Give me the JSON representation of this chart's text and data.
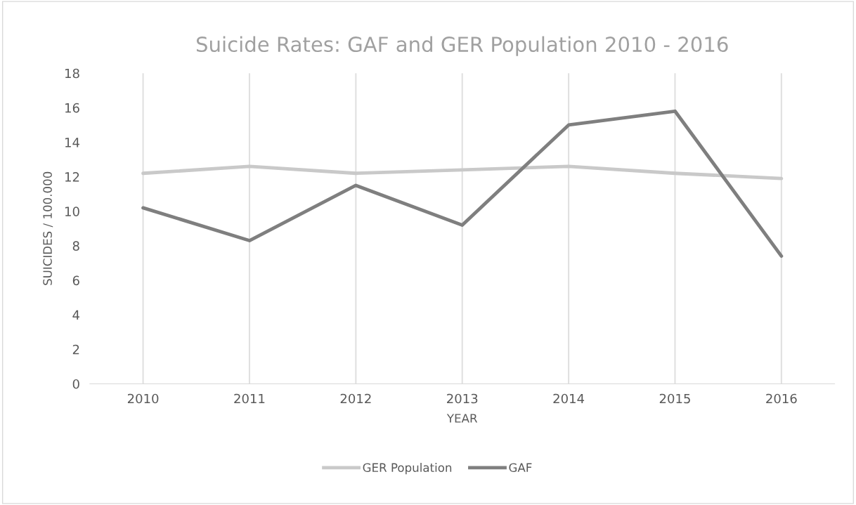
{
  "chart_data": {
    "type": "line",
    "title": "Suicide Rates: GAF and GER Population 2010 - 2016",
    "xlabel": "YEAR",
    "ylabel": "SUICIDES / 100.000",
    "categories": [
      "2010",
      "2011",
      "2012",
      "2013",
      "2014",
      "2015",
      "2016"
    ],
    "series": [
      {
        "name": "GER Population",
        "color": "#c9c9c9",
        "values": [
          12.2,
          12.6,
          12.2,
          12.4,
          12.6,
          12.2,
          11.9
        ]
      },
      {
        "name": "GAF",
        "color": "#7f7f7f",
        "values": [
          10.2,
          8.3,
          11.5,
          9.2,
          15.0,
          15.8,
          7.4
        ]
      }
    ],
    "ylim": [
      0,
      18
    ],
    "yticks": [
      0,
      2,
      4,
      6,
      8,
      10,
      12,
      14,
      16,
      18
    ],
    "grid": "x",
    "legend": "bottom",
    "marker": "none",
    "line_style": "solid"
  }
}
